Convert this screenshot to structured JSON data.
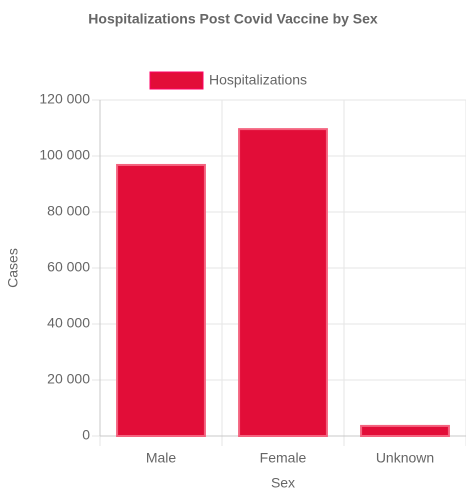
{
  "chart_data": {
    "type": "bar",
    "title": "Hospitalizations Post Covid Vaccine by Sex",
    "x_label": "Sex",
    "y_label": "Cases",
    "categories": [
      "Male",
      "Female",
      "Unknown"
    ],
    "series": [
      {
        "name": "Hospitalizations",
        "color": "#e20d38",
        "values": [
          96800,
          109600,
          3600
        ]
      }
    ],
    "ylim": [
      0,
      120000
    ],
    "yticks": [
      0,
      {
        "value": 20000,
        "label": "20 000"
      },
      {
        "value": 40000,
        "label": "40 000"
      },
      {
        "value": 60000,
        "label": "60 000"
      },
      {
        "value": 80000,
        "label": "80 000"
      },
      {
        "value": 100000,
        "label": "100 000"
      },
      {
        "value": 120000,
        "label": "120 000"
      }
    ],
    "grid": true
  }
}
